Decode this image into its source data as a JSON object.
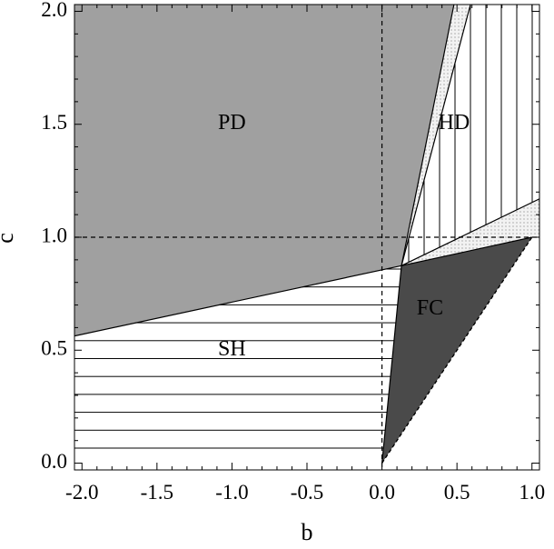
{
  "chart_data": {
    "type": "phase-diagram",
    "xlabel": "b",
    "ylabel": "c",
    "xlim": [
      -2.05,
      1.05
    ],
    "ylim": [
      -0.03,
      2.03
    ],
    "x_ticks": [
      "-2.0",
      "-1.5",
      "-1.0",
      "-0.5",
      "0.0",
      "0.5",
      "1.0"
    ],
    "y_ticks": [
      "0.0",
      "0.5",
      "1.0",
      "1.5",
      "2.0"
    ],
    "x_tick_values": [
      -2.0,
      -1.5,
      -1.0,
      -0.5,
      0.0,
      0.5,
      1.0
    ],
    "y_tick_values": [
      0.0,
      0.5,
      1.0,
      1.5,
      2.0
    ],
    "reference_lines": [
      {
        "orientation": "vertical",
        "value": 0.0,
        "style": "dashed"
      },
      {
        "orientation": "horizontal",
        "value": 1.0,
        "style": "dashed"
      }
    ],
    "regions": [
      {
        "label": "PD",
        "label_at": [
          -1.0,
          1.5
        ],
        "fill": "#a0a0a0",
        "pattern": "solid",
        "polygon": [
          [
            -2.05,
            2.03
          ],
          [
            0.48,
            2.03
          ],
          [
            0.13,
            0.874
          ],
          [
            -2.05,
            0.563
          ]
        ]
      },
      {
        "label": "HD",
        "label_at": [
          0.48,
          1.5
        ],
        "fill": "#ffffff",
        "pattern": "vertical-lines",
        "polygon": [
          [
            0.13,
            0.874
          ],
          [
            0.59,
            2.03
          ],
          [
            1.05,
            2.03
          ],
          [
            1.05,
            1.17
          ]
        ]
      },
      {
        "label": "",
        "fill": "#f2f2f2",
        "pattern": "dots",
        "polygon": [
          [
            0.13,
            0.874
          ],
          [
            0.48,
            2.03
          ],
          [
            0.59,
            2.03
          ]
        ]
      },
      {
        "label": "",
        "fill": "#f2f2f2",
        "pattern": "dots",
        "polygon": [
          [
            0.13,
            0.874
          ],
          [
            1.05,
            1.17
          ],
          [
            1.05,
            1.0
          ],
          [
            1.0,
            1.0
          ]
        ]
      },
      {
        "label": "SH",
        "label_at": [
          -1.0,
          0.5
        ],
        "fill": "#ffffff",
        "pattern": "horizontal-lines",
        "polygon": [
          [
            -2.05,
            0.563
          ],
          [
            0.13,
            0.874
          ],
          [
            0.0,
            0.0
          ],
          [
            -2.05,
            0.0
          ]
        ]
      },
      {
        "label": "FC",
        "label_at": [
          0.32,
          0.68
        ],
        "fill": "#4a4a4a",
        "pattern": "solid",
        "polygon": [
          [
            0.13,
            0.874
          ],
          [
            1.0,
            1.0
          ],
          [
            0.0,
            0.0
          ]
        ]
      }
    ],
    "boundaries": [
      {
        "points": [
          [
            -2.05,
            0.563
          ],
          [
            0.13,
            0.874
          ]
        ],
        "style": "solid"
      },
      {
        "points": [
          [
            0.13,
            0.874
          ],
          [
            0.48,
            2.03
          ]
        ],
        "style": "solid"
      },
      {
        "points": [
          [
            0.13,
            0.874
          ],
          [
            0.59,
            2.03
          ]
        ],
        "style": "solid"
      },
      {
        "points": [
          [
            0.13,
            0.874
          ],
          [
            1.05,
            1.17
          ]
        ],
        "style": "solid"
      },
      {
        "points": [
          [
            0.13,
            0.874
          ],
          [
            1.0,
            1.0
          ]
        ],
        "style": "solid"
      },
      {
        "points": [
          [
            0.13,
            0.874
          ],
          [
            0.0,
            0.0
          ]
        ],
        "style": "solid"
      },
      {
        "points": [
          [
            0.0,
            0.0
          ],
          [
            1.0,
            1.0
          ]
        ],
        "style": "dashed"
      },
      {
        "points": [
          [
            0.0,
            0.0
          ],
          [
            1.0,
            1.0
          ]
        ],
        "style": "dashed"
      }
    ],
    "grid": false,
    "legend": "none"
  }
}
